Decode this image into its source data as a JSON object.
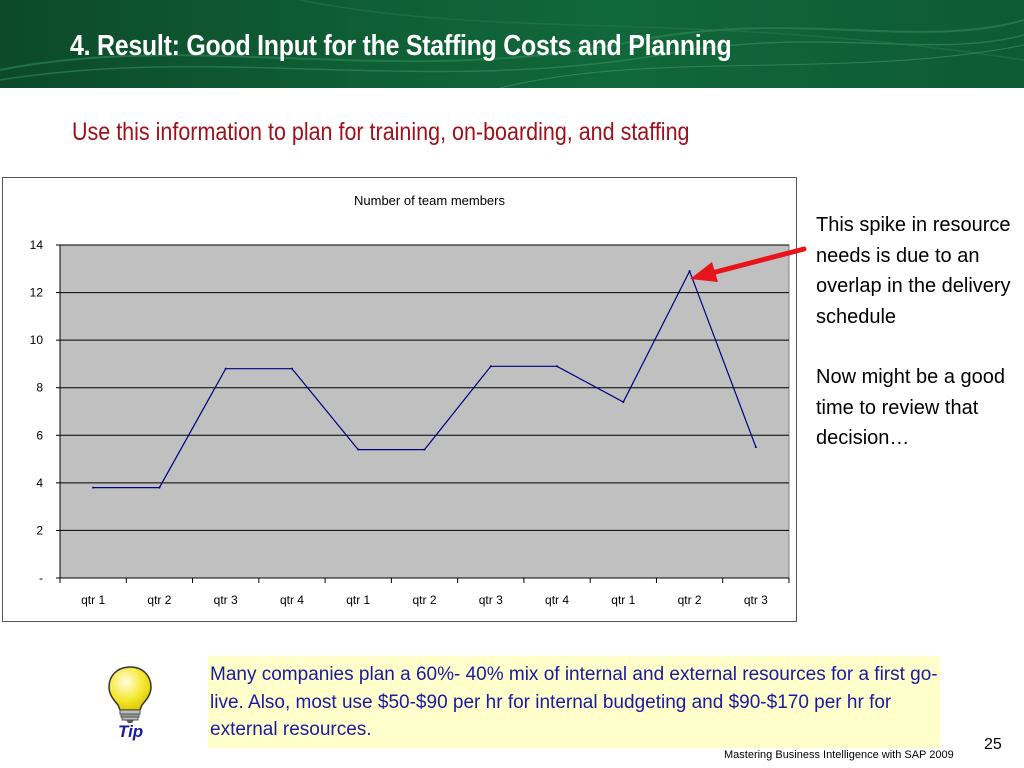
{
  "slide": {
    "title": "4. Result: Good Input for the Staffing Costs and Planning",
    "subtitle": "Use this information to plan for training, on-boarding, and staffing",
    "note_paragraph_1": "This spike in resource needs is due to an overlap in the delivery schedule",
    "note_paragraph_2": "Now might be a good time to review that decision…",
    "tip_text": "Many companies plan a 60%- 40% mix of internal and external resources for a first go-live.  Also, most use $50-$90 per hr for internal budgeting and $90-$170 per hr for external resources.",
    "tip_label": "Tip",
    "footer": "Mastering Business Intelligence with SAP 2009",
    "page_number": "25"
  },
  "icons": {
    "tip": "lightbulb-icon",
    "callout": "red-arrow"
  },
  "colors": {
    "header_bg": "#0f5e35",
    "subtitle": "#a0101a",
    "plot_bg": "#c0c0c0",
    "line": "#000080",
    "arrow": "#e8141c",
    "tip_bg": "#ffffcc",
    "tip_text": "#1a1aa0"
  },
  "chart_data": {
    "type": "line",
    "title": "Number of team members",
    "categories": [
      "qtr 1",
      "qtr 2",
      "qtr 3",
      "qtr 4",
      "qtr 1",
      "qtr 2",
      "qtr 3",
      "qtr 4",
      "qtr 1",
      "qtr 2",
      "qtr 3"
    ],
    "series": [
      {
        "values": [
          3.8,
          3.8,
          8.8,
          8.8,
          5.4,
          5.4,
          8.9,
          8.9,
          7.4,
          12.9,
          5.5
        ]
      }
    ],
    "ylim": [
      0,
      14
    ],
    "yticks": [
      0,
      2,
      4,
      6,
      8,
      10,
      12,
      14
    ],
    "ytick_labels": [
      "-",
      "2",
      "4",
      "6",
      "8",
      "10",
      "12",
      "14"
    ],
    "grid": true,
    "legend": "none"
  }
}
